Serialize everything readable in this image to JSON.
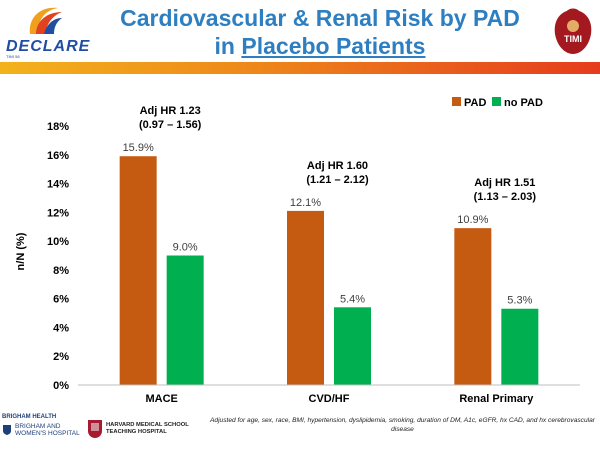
{
  "header": {
    "title_line1": "Cardiovascular & Renal Risk by PAD",
    "title_line2_prefix": "in ",
    "title_line2_underlined": "Placebo Patients",
    "logo_left_text": "DECLARE",
    "logo_left_sub": "TIMI 58",
    "logo_right_text": "TIMI"
  },
  "chart_data": {
    "type": "bar",
    "categories": [
      "MACE",
      "CVD/HF",
      "Renal Primary"
    ],
    "series": [
      {
        "name": "PAD",
        "color": "#c55a11",
        "values": [
          15.9,
          12.1,
          10.9
        ],
        "labels": [
          "15.9%",
          "12.1%",
          "10.9%"
        ]
      },
      {
        "name": "no PAD",
        "color": "#00b050",
        "values": [
          9.0,
          5.4,
          5.3
        ],
        "labels": [
          "9.0%",
          "5.4%",
          "5.3%"
        ]
      }
    ],
    "ylabel": "n/N (%)",
    "xlabel": "",
    "ylim": [
      0,
      18
    ],
    "yticks": [
      0,
      2,
      4,
      6,
      8,
      10,
      12,
      14,
      16,
      18
    ],
    "ytick_labels": [
      "0%",
      "2%",
      "4%",
      "6%",
      "8%",
      "10%",
      "12%",
      "14%",
      "16%",
      "18%"
    ],
    "legend_position": "top-right",
    "grid": false,
    "annotations": [
      {
        "line1": "Adj HR 1.23",
        "line2": "(0.97 – 1.56)"
      },
      {
        "line1": "Adj HR 1.60",
        "line2": "(1.21 – 2.12)"
      },
      {
        "line1": "Adj HR 1.51",
        "line2": "(1.13 – 2.03)"
      }
    ]
  },
  "footer": {
    "org1_line1": "BRIGHAM HEALTH",
    "org1_line2": "BRIGHAM AND",
    "org1_line3": "WOMEN'S HOSPITAL",
    "org2_line1": "HARVARD MEDICAL SCHOOL",
    "org2_line2": "TEACHING HOSPITAL",
    "footnote": "Adjusted for age, sex, race, BMI, hypertension, dyslipidemia, smoking, duration of DM, A1c, eGFR, hx CAD, and hx cerebrovascular disease"
  }
}
